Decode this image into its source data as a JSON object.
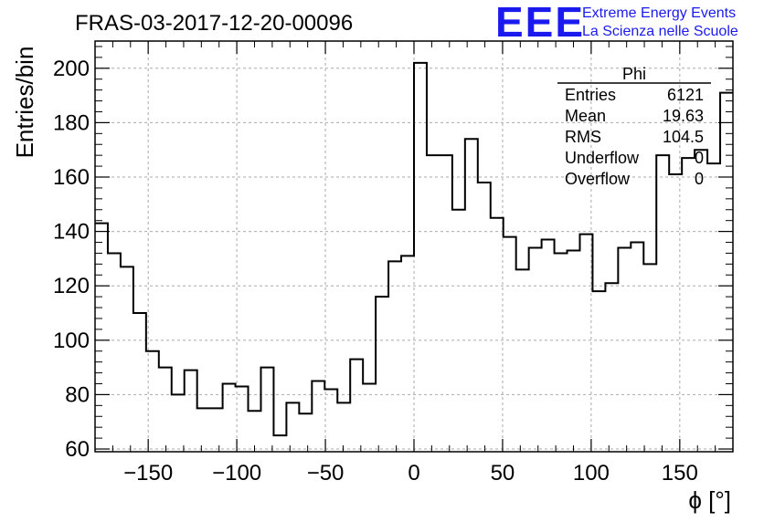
{
  "header": {
    "title": "FRAS-03-2017-12-20-00096",
    "logo_text": "EEE",
    "logo_line1": "Extreme Energy Events",
    "logo_line2": "La Scienza nelle Scuole",
    "logo_color": "#1a1aee"
  },
  "stats": {
    "name": "Phi",
    "rows": [
      {
        "label": "Entries",
        "value": "6121"
      },
      {
        "label": "Mean",
        "value": "19.63"
      },
      {
        "label": "RMS",
        "value": "104.5"
      },
      {
        "label": "Underflow",
        "value": "0"
      },
      {
        "label": "Overflow",
        "value": "0"
      }
    ]
  },
  "chart_data": {
    "type": "bar",
    "style": "histogram-step",
    "xlabel": "ϕ [°]",
    "ylabel": "Entries/bin",
    "xlim": [
      -180,
      180
    ],
    "ylim": [
      59,
      210
    ],
    "xticks": [
      -150,
      -100,
      -50,
      0,
      50,
      100,
      150
    ],
    "yticks": [
      60,
      80,
      100,
      120,
      140,
      160,
      180,
      200
    ],
    "grid": true,
    "bin_width": 7.2,
    "values": [
      143,
      132,
      127,
      110,
      96,
      90,
      80,
      89,
      75,
      75,
      84,
      83,
      74,
      90,
      65,
      77,
      73,
      85,
      82,
      77,
      93,
      84,
      116,
      129,
      131,
      202,
      168,
      168,
      148,
      174,
      158,
      145,
      138,
      126,
      134,
      137,
      132,
      133,
      139,
      118,
      121,
      134,
      136,
      128,
      168,
      161,
      167,
      170,
      165,
      191
    ],
    "line_color": "#000000"
  }
}
